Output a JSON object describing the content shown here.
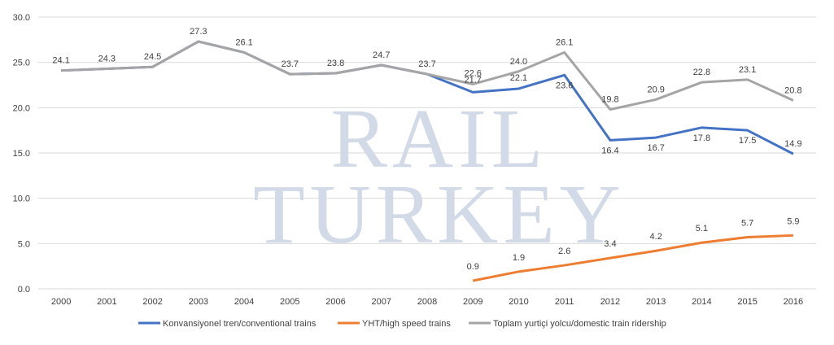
{
  "watermark": [
    "RAIL",
    "TURKEY"
  ],
  "chart_data": {
    "type": "line",
    "title": "",
    "xlabel": "",
    "ylabel": "",
    "ylim": [
      0,
      30
    ],
    "yticks": [
      "0.0",
      "5.0",
      "10.0",
      "15.0",
      "20.0",
      "25.0",
      "30.0"
    ],
    "grid": true,
    "legend": "bottom",
    "categories": [
      "2000",
      "2001",
      "2002",
      "2003",
      "2004",
      "2005",
      "2006",
      "2007",
      "2008",
      "2009",
      "2010",
      "2011",
      "2012",
      "2013",
      "2014",
      "2015",
      "2016"
    ],
    "series": [
      {
        "name": "Konvansiyonel tren/conventional trains",
        "color": "#4472c4",
        "values": [
          24.1,
          24.3,
          24.5,
          27.3,
          26.1,
          23.7,
          23.8,
          24.7,
          23.7,
          21.7,
          22.1,
          23.6,
          16.4,
          16.7,
          17.8,
          17.5,
          14.9
        ]
      },
      {
        "name": "YHT/high speed trains",
        "color": "#ed7d31",
        "values": [
          null,
          null,
          null,
          null,
          null,
          null,
          null,
          null,
          null,
          0.9,
          1.9,
          2.6,
          3.4,
          4.2,
          5.1,
          5.7,
          5.9
        ]
      },
      {
        "name": "Toplam yurtiçi yolcu/domestic train ridership",
        "color": "#a5a5a5",
        "values": [
          24.1,
          24.3,
          24.5,
          27.3,
          26.1,
          23.7,
          23.8,
          24.7,
          23.7,
          22.6,
          24.0,
          26.1,
          19.8,
          20.9,
          22.8,
          23.1,
          20.8
        ]
      }
    ]
  }
}
